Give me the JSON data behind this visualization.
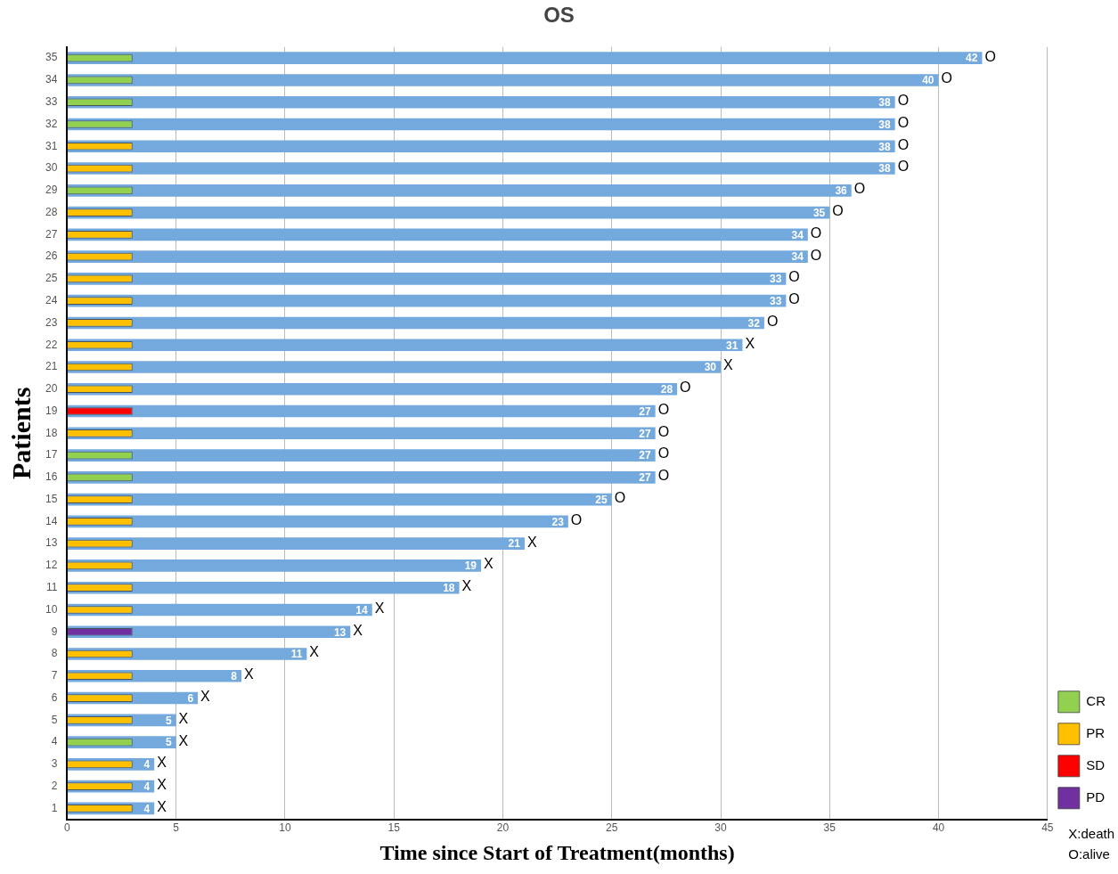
{
  "chart_data": {
    "type": "bar",
    "orientation": "horizontal",
    "title": "OS",
    "xlabel": "Time since Start of Treatment(months)",
    "ylabel": "Patients",
    "categories": [
      "35",
      "34",
      "33",
      "32",
      "31",
      "30",
      "29",
      "28",
      "27",
      "26",
      "25",
      "24",
      "23",
      "22",
      "21",
      "20",
      "19",
      "18",
      "17",
      "16",
      "15",
      "14",
      "13",
      "12",
      "11",
      "10",
      "9",
      "8",
      "7",
      "6",
      "5",
      "4",
      "3",
      "2",
      "1"
    ],
    "xlim": [
      0,
      45
    ],
    "xticks": [
      0,
      5,
      10,
      15,
      20,
      25,
      30,
      35,
      40,
      45
    ],
    "grid": "x",
    "legend": "bottom right",
    "series": [
      {
        "color": "#74a9dd",
        "values": [
          42,
          40,
          38,
          38,
          38,
          38,
          36,
          35,
          34,
          34,
          33,
          33,
          32,
          31,
          30,
          28,
          27,
          27,
          27,
          27,
          25,
          23,
          21,
          19,
          18,
          14,
          13,
          11,
          8,
          6,
          5,
          5,
          4,
          4,
          4
        ],
        "value_labels": [
          "42",
          "40",
          "38",
          "38",
          "38",
          "38",
          "36",
          "35",
          "34",
          "34",
          "33",
          "33",
          "32",
          "31",
          "30",
          "28",
          "27",
          "27",
          "27",
          "27",
          "25",
          "23",
          "21",
          "19",
          "18",
          "14",
          "13",
          "11",
          "8",
          "6",
          "5",
          "5",
          "4",
          "4",
          "4"
        ]
      },
      {
        "name": "CR",
        "color": "#92d050",
        "values": [
          3,
          3,
          3,
          3,
          null,
          null,
          3,
          null,
          null,
          null,
          null,
          null,
          null,
          null,
          null,
          null,
          null,
          null,
          3,
          3,
          null,
          null,
          null,
          null,
          null,
          null,
          null,
          null,
          null,
          null,
          null,
          3,
          null,
          null,
          null
        ]
      },
      {
        "name": "PR",
        "color": "#ffc000",
        "values": [
          null,
          null,
          null,
          null,
          3,
          3,
          null,
          3,
          3,
          3,
          3,
          3,
          3,
          3,
          3,
          3,
          null,
          3,
          null,
          null,
          3,
          3,
          3,
          3,
          3,
          3,
          null,
          3,
          3,
          3,
          3,
          null,
          3,
          3,
          3
        ]
      },
      {
        "name": "SD",
        "color": "#ff0000",
        "values": [
          null,
          null,
          null,
          null,
          null,
          null,
          null,
          null,
          null,
          null,
          null,
          null,
          null,
          null,
          null,
          null,
          3,
          null,
          null,
          null,
          null,
          null,
          null,
          null,
          null,
          null,
          null,
          null,
          null,
          null,
          null,
          null,
          null,
          null,
          null
        ]
      },
      {
        "name": "PD",
        "color": "#7030a0",
        "values": [
          null,
          null,
          null,
          null,
          null,
          null,
          null,
          null,
          null,
          null,
          null,
          null,
          null,
          null,
          null,
          null,
          null,
          null,
          null,
          null,
          null,
          null,
          null,
          null,
          null,
          null,
          3,
          null,
          null,
          null,
          null,
          null,
          null,
          null,
          null
        ]
      }
    ],
    "annotations": [
      {
        "text": "O",
        "x": 42,
        "y": "35"
      },
      {
        "text": "O",
        "x": 40,
        "y": "34"
      },
      {
        "text": "O",
        "x": 38,
        "y": "33"
      },
      {
        "text": "O",
        "x": 38,
        "y": "32"
      },
      {
        "text": "O",
        "x": 38,
        "y": "31"
      },
      {
        "text": "O",
        "x": 38,
        "y": "30"
      },
      {
        "text": "O",
        "x": 36,
        "y": "29"
      },
      {
        "text": "O",
        "x": 35,
        "y": "28"
      },
      {
        "text": "O",
        "x": 34,
        "y": "27"
      },
      {
        "text": "O",
        "x": 34,
        "y": "26"
      },
      {
        "text": "O",
        "x": 33,
        "y": "25"
      },
      {
        "text": "O",
        "x": 33,
        "y": "24"
      },
      {
        "text": "O",
        "x": 32,
        "y": "23"
      },
      {
        "text": "X",
        "x": 31,
        "y": "22"
      },
      {
        "text": "X",
        "x": 30,
        "y": "21"
      },
      {
        "text": "O",
        "x": 28,
        "y": "20"
      },
      {
        "text": "O",
        "x": 27,
        "y": "19"
      },
      {
        "text": "O",
        "x": 27,
        "y": "18"
      },
      {
        "text": "O",
        "x": 27,
        "y": "17"
      },
      {
        "text": "O",
        "x": 27,
        "y": "16"
      },
      {
        "text": "O",
        "x": 25,
        "y": "15"
      },
      {
        "text": "O",
        "x": 23,
        "y": "14"
      },
      {
        "text": "X",
        "x": 21,
        "y": "13"
      },
      {
        "text": "X",
        "x": 19,
        "y": "12"
      },
      {
        "text": "X",
        "x": 18,
        "y": "11"
      },
      {
        "text": "X",
        "x": 14,
        "y": "10"
      },
      {
        "text": "X",
        "x": 13,
        "y": "9"
      },
      {
        "text": "X",
        "x": 11,
        "y": "8"
      },
      {
        "text": "X",
        "x": 8,
        "y": "7"
      },
      {
        "text": "X",
        "x": 6,
        "y": "6"
      },
      {
        "text": "X",
        "x": 5,
        "y": "5"
      },
      {
        "text": "X",
        "x": 5,
        "y": "4"
      },
      {
        "text": "X",
        "x": 4,
        "y": "3"
      },
      {
        "text": "X",
        "x": 4,
        "y": "2"
      },
      {
        "text": "X",
        "x": 4,
        "y": "1"
      },
      "X:death",
      "O:alive"
    ]
  }
}
